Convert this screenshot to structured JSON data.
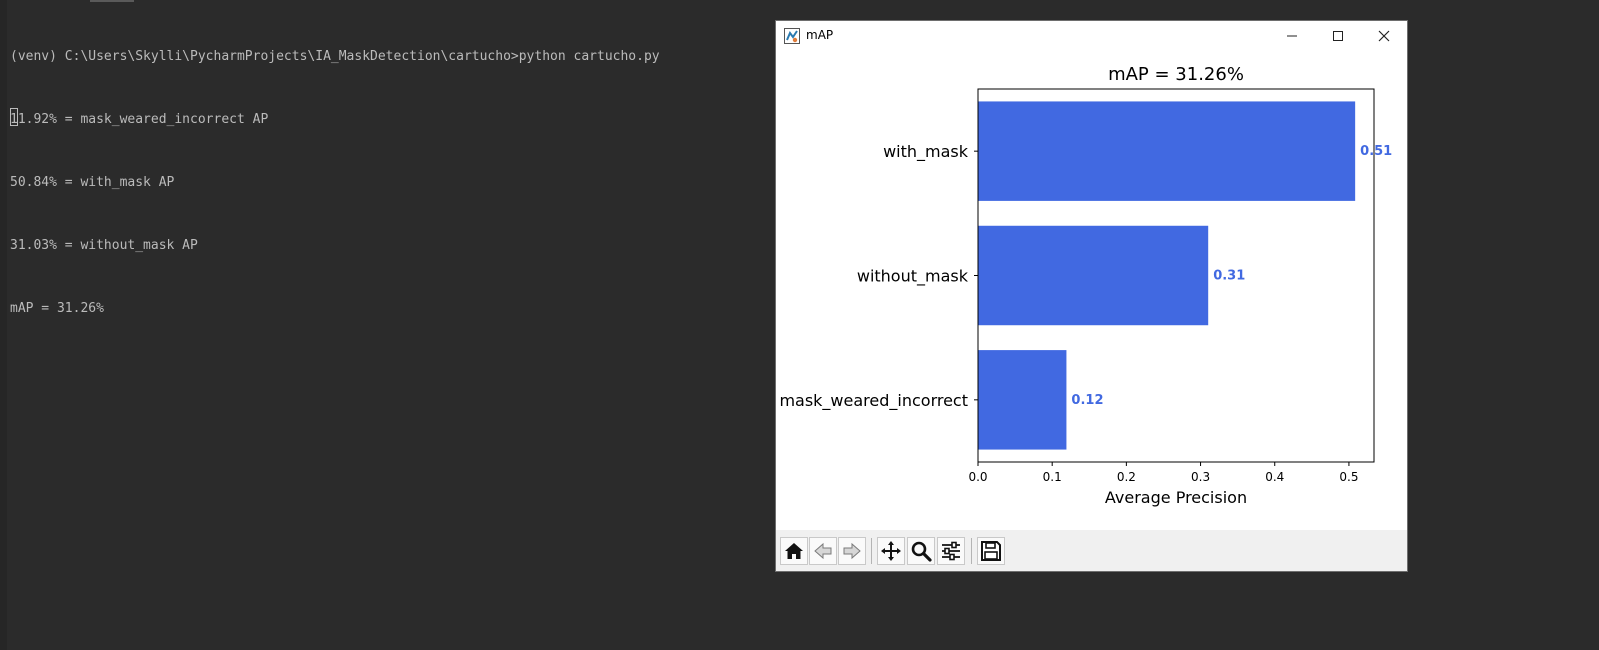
{
  "terminal": {
    "lines": [
      "(venv) C:\\Users\\Skylli\\PycharmProjects\\IA_MaskDetection\\cartucho>python cartucho.py",
      "11.92% = mask_weared_incorrect AP",
      "50.84% = with_mask AP",
      "31.03% = without_mask AP",
      "mAP = 31.26%"
    ]
  },
  "window": {
    "title": "mAP",
    "icon": "matplotlib-app-icon",
    "controls": [
      "minimize-icon",
      "maximize-icon",
      "close-icon"
    ]
  },
  "toolbar": {
    "icons": [
      "home-icon",
      "back-icon",
      "forward-icon",
      "pan-icon",
      "zoom-icon",
      "configure-subplots-icon",
      "save-icon"
    ]
  },
  "colors": {
    "terminal_bg": "#2b2b2b",
    "terminal_text": "#bbbbbb",
    "bar": "#4169e1",
    "value_label": "#4169e1"
  },
  "chart_data": {
    "type": "bar",
    "orientation": "horizontal",
    "title": "mAP = 31.26%",
    "xlabel": "Average Precision",
    "ylabel": "",
    "categories": [
      "with_mask",
      "without_mask",
      "mask_weared_incorrect"
    ],
    "values": [
      0.5084,
      0.3103,
      0.1192
    ],
    "value_labels": [
      "0.51",
      "0.31",
      "0.12"
    ],
    "xlim": [
      0,
      0.5338
    ],
    "xticks": [
      0,
      0.1,
      0.2,
      0.3,
      0.4,
      0.5
    ],
    "xtick_labels": [
      "0.0",
      "0.1",
      "0.2",
      "0.3",
      "0.4",
      "0.5"
    ],
    "grid": false,
    "legend": "none"
  }
}
